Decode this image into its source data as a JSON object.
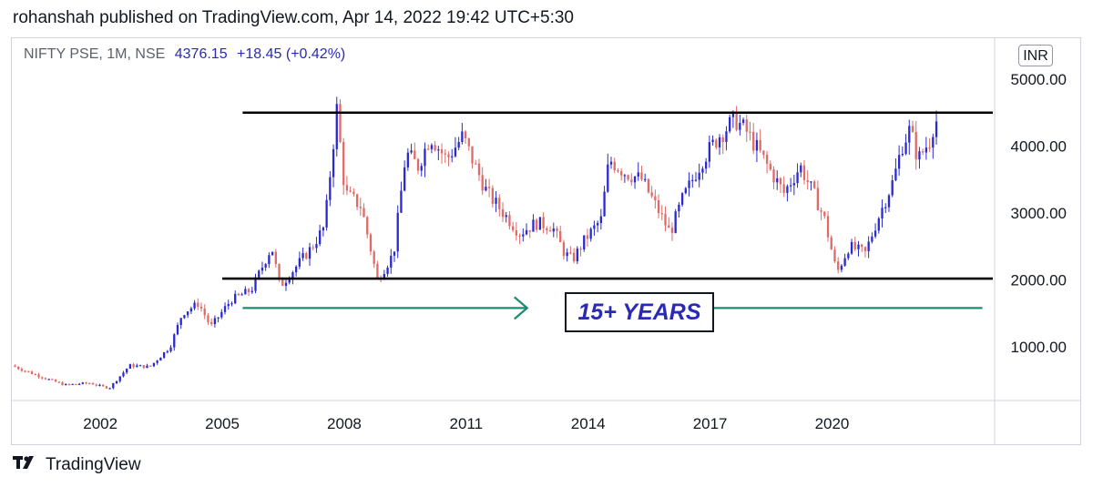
{
  "header": {
    "published_text": "rohanshah published on TradingView.com, Apr 14, 2022 19:42 UTC+5:30"
  },
  "legend": {
    "symbol": "NIFTY PSE, 1M, NSE",
    "value": "4376.15",
    "change": "+18.45 (+0.42%)"
  },
  "currency_badge": "INR",
  "annotation": {
    "label": "15+ YEARS",
    "arrow_color": "#1e8c74"
  },
  "brand": {
    "name": "TradingView",
    "icon": "tradingview-logo-icon"
  },
  "colors": {
    "up": "#2a2ad0",
    "down": "#e06a66",
    "level_line": "#000000",
    "annotation": "#1e8c74"
  },
  "chart_data": {
    "type": "candlestick",
    "title": "",
    "symbol": "NIFTY PSE",
    "interval": "1M",
    "exchange": "NSE",
    "y_axis": {
      "side": "right",
      "ticks": [
        1000,
        2000,
        3000,
        4000,
        5000
      ],
      "tick_labels": [
        "1000.00",
        "2000.00",
        "3000.00",
        "4000.00",
        "5000.00"
      ],
      "range": [
        0,
        5300
      ]
    },
    "x_axis": {
      "ticks": [
        2002,
        2005,
        2008,
        2011,
        2014,
        2017,
        2020
      ],
      "tick_labels": [
        "2002",
        "2005",
        "2008",
        "2011",
        "2014",
        "2017",
        "2020"
      ],
      "range": [
        1999.8,
        2024.0
      ]
    },
    "horizontal_lines": [
      {
        "name": "resistance",
        "value": 4500,
        "x_start": 2005.5,
        "x_end": 2024.0
      },
      {
        "name": "support",
        "value": 2020,
        "x_start": 2005.0,
        "x_end": 2024.0
      }
    ],
    "arrows": [
      {
        "direction": "right",
        "value": 1580,
        "x_start": 2005.5,
        "x_end": 2012.5
      },
      {
        "direction": "left",
        "value": 1580,
        "x_start": 2023.7,
        "x_end": 2015.8
      }
    ],
    "anchors": [
      [
        1999.9,
        720
      ],
      [
        2000.5,
        580
      ],
      [
        2001.2,
        430
      ],
      [
        2001.8,
        460
      ],
      [
        2002.3,
        380
      ],
      [
        2002.8,
        720
      ],
      [
        2003.3,
        700
      ],
      [
        2003.8,
        1000
      ],
      [
        2004.1,
        1500
      ],
      [
        2004.5,
        1650
      ],
      [
        2004.8,
        1300
      ],
      [
        2005.3,
        1700
      ],
      [
        2005.8,
        1850
      ],
      [
        2006.3,
        2500
      ],
      [
        2006.5,
        1900
      ],
      [
        2006.9,
        2200
      ],
      [
        2007.3,
        2500
      ],
      [
        2007.6,
        2800
      ],
      [
        2007.9,
        4550
      ],
      [
        2008.1,
        3300
      ],
      [
        2008.5,
        3100
      ],
      [
        2008.9,
        2000
      ],
      [
        2009.3,
        2400
      ],
      [
        2009.6,
        3900
      ],
      [
        2009.9,
        3700
      ],
      [
        2010.2,
        4150
      ],
      [
        2010.6,
        3800
      ],
      [
        2011.0,
        4150
      ],
      [
        2011.3,
        3700
      ],
      [
        2011.6,
        3300
      ],
      [
        2012.0,
        3000
      ],
      [
        2012.4,
        2700
      ],
      [
        2012.8,
        2850
      ],
      [
        2013.2,
        2800
      ],
      [
        2013.5,
        2400
      ],
      [
        2013.7,
        2300
      ],
      [
        2014.0,
        2600
      ],
      [
        2014.4,
        2900
      ],
      [
        2014.6,
        3800
      ],
      [
        2015.0,
        3600
      ],
      [
        2015.4,
        3500
      ],
      [
        2015.8,
        3050
      ],
      [
        2016.1,
        2700
      ],
      [
        2016.4,
        3200
      ],
      [
        2016.9,
        3800
      ],
      [
        2017.3,
        4150
      ],
      [
        2017.7,
        4400
      ],
      [
        2018.0,
        4200
      ],
      [
        2018.5,
        3700
      ],
      [
        2018.9,
        3300
      ],
      [
        2019.3,
        3700
      ],
      [
        2019.7,
        3200
      ],
      [
        2019.9,
        2900
      ],
      [
        2020.2,
        2100
      ],
      [
        2020.5,
        2500
      ],
      [
        2020.9,
        2400
      ],
      [
        2021.2,
        2900
      ],
      [
        2021.6,
        3500
      ],
      [
        2021.8,
        4000
      ],
      [
        2022.0,
        4250
      ],
      [
        2022.2,
        3800
      ],
      [
        2022.5,
        4100
      ],
      [
        2022.6,
        4376
      ]
    ]
  }
}
